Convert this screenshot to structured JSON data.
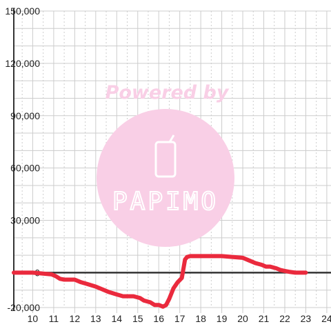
{
  "watermark": {
    "text": "Powered by",
    "logo_text": "PAPIMO",
    "color": "#f9cfe6"
  },
  "colors": {
    "line": "#ea2a3d",
    "axis": "#333333",
    "grid": "#cccccc"
  },
  "chart_data": {
    "type": "line",
    "title": "",
    "xlabel": "",
    "ylabel": "",
    "xlim": [
      9.1,
      24.2
    ],
    "ylim": [
      -20000,
      150000
    ],
    "x_ticks": [
      10,
      11,
      12,
      13,
      14,
      15,
      16,
      17,
      18,
      19,
      20,
      21,
      22,
      23,
      24
    ],
    "x_tick_labels": [
      "10",
      "11",
      "12",
      "13",
      "14",
      "15",
      "16",
      "17",
      "18",
      "19",
      "20",
      "21",
      "22",
      "23",
      "24"
    ],
    "y_ticks": [
      -20000,
      0,
      30000,
      60000,
      90000,
      120000,
      150000
    ],
    "y_tick_labels": [
      "-20,000",
      "0",
      "30,000",
      "60,000",
      "90,000",
      "120,000",
      "150,000"
    ],
    "grid": true,
    "legend": "none",
    "series": [
      {
        "x": [
          9.1,
          10,
          10.5,
          10.9,
          11.1,
          11.3,
          11.5,
          11.8,
          12,
          12.3,
          12.6,
          13,
          13.3,
          13.6,
          14,
          14.3,
          14.6,
          14.8,
          15.1,
          15.3,
          15.6,
          15.8,
          16,
          16.2,
          16.35,
          16.5,
          16.7,
          16.9,
          17.1,
          17.25,
          17.35,
          17.5,
          18,
          18.5,
          19,
          19.5,
          20,
          20.3,
          20.6,
          20.9,
          21.1,
          21.3,
          21.6,
          21.8,
          22,
          22.2,
          22.5,
          22.8,
          23
        ],
        "y": [
          0,
          0,
          -500,
          -1000,
          -2000,
          -3500,
          -4000,
          -4000,
          -4000,
          -5500,
          -6500,
          -8000,
          -9500,
          -11000,
          -12500,
          -13500,
          -13500,
          -13500,
          -14500,
          -16000,
          -17000,
          -18500,
          -18500,
          -19500,
          -18500,
          -15000,
          -9000,
          -5500,
          -3000,
          7500,
          9000,
          9500,
          9500,
          9500,
          9500,
          9000,
          8500,
          7000,
          5500,
          4500,
          3500,
          3500,
          2500,
          1500,
          1000,
          500,
          0,
          0,
          0
        ]
      }
    ]
  }
}
